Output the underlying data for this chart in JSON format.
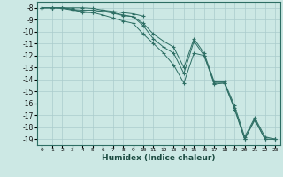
{
  "title": "",
  "xlabel": "Humidex (Indice chaleur)",
  "background_color": "#cce8e4",
  "grid_color": "#aacccc",
  "line_color": "#2d6e64",
  "xlim": [
    -0.5,
    23.5
  ],
  "ylim": [
    -19.5,
    -7.5
  ],
  "xticks": [
    0,
    1,
    2,
    3,
    4,
    5,
    6,
    7,
    8,
    9,
    10,
    11,
    12,
    13,
    14,
    15,
    16,
    17,
    18,
    19,
    20,
    21,
    22,
    23
  ],
  "yticks": [
    -8,
    -9,
    -10,
    -11,
    -12,
    -13,
    -14,
    -15,
    -16,
    -17,
    -18,
    -19
  ],
  "line1_x": [
    0,
    1,
    2,
    3,
    4,
    5,
    6,
    7,
    8,
    9,
    10,
    11,
    12,
    13,
    14,
    15,
    16,
    17,
    18,
    19,
    20,
    21,
    22,
    23
  ],
  "line1_y": [
    -8,
    -8,
    -8,
    -8.15,
    -8.2,
    -8.2,
    -8.3,
    -8.45,
    -8.65,
    -8.75,
    -9.3,
    -10.2,
    -10.8,
    -11.3,
    -13.0,
    -10.6,
    -11.8,
    -14.2,
    -14.2,
    -16.2,
    -18.8,
    -17.2,
    -18.8,
    -19.0
  ],
  "line2_x": [
    0,
    1,
    2,
    3,
    4,
    5,
    6,
    7,
    8,
    9,
    10,
    11,
    12,
    13,
    14,
    15,
    16,
    17,
    18,
    19,
    20,
    21,
    22,
    23
  ],
  "line2_y": [
    -8,
    -8,
    -8.05,
    -8.2,
    -8.3,
    -8.4,
    -8.6,
    -8.85,
    -9.1,
    -9.3,
    -10.2,
    -11.0,
    -11.8,
    -12.8,
    -14.3,
    -11.8,
    -12.0,
    -14.3,
    -14.3,
    -16.4,
    -19.0,
    -17.3,
    -19.0,
    -19.0
  ],
  "line3_x": [
    0,
    1,
    2,
    3,
    4,
    5,
    6,
    7,
    8,
    9,
    10,
    11,
    12,
    13,
    14,
    15,
    16,
    17,
    18,
    19,
    20,
    21,
    22,
    23
  ],
  "line3_y": [
    -8,
    -8,
    -8,
    -8,
    -8,
    -8.05,
    -8.2,
    -8.4,
    -8.6,
    -8.75,
    -9.5,
    -10.6,
    -11.3,
    -11.8,
    -13.5,
    -10.8,
    -12.0,
    -14.4,
    -14.3,
    -16.5,
    -19.0,
    -17.4,
    -19.0,
    -19.0
  ],
  "line4_x": [
    0,
    1,
    2,
    3,
    4,
    5,
    6,
    7,
    8,
    9,
    10
  ],
  "line4_y": [
    -8,
    -8,
    -8,
    -8.1,
    -8.4,
    -8.4,
    -8.2,
    -8.3,
    -8.4,
    -8.5,
    -8.7
  ]
}
